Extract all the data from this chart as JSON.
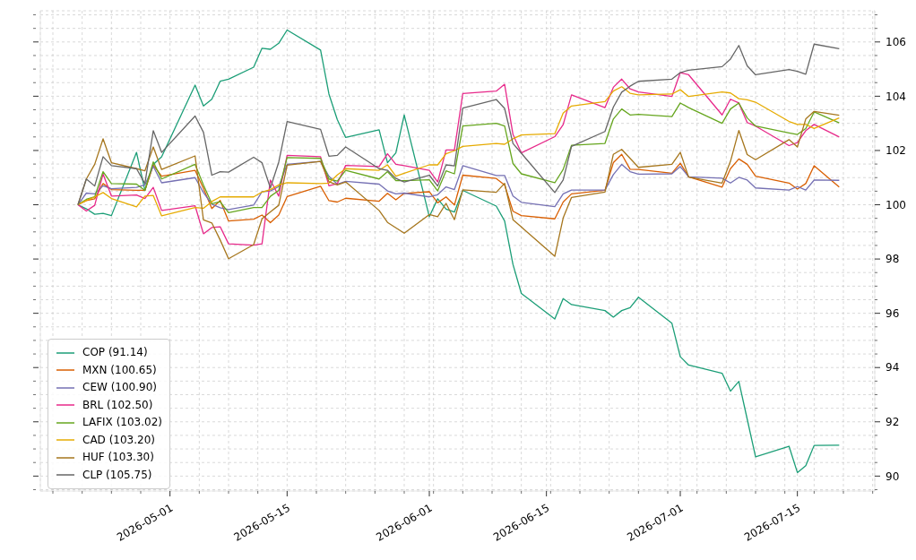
{
  "chart_data": {
    "type": "line",
    "x": [
      "2026-04-20",
      "2026-04-21",
      "2026-04-22",
      "2026-04-23",
      "2026-04-24",
      "2026-04-27",
      "2026-04-28",
      "2026-04-29",
      "2026-04-30",
      "2026-05-04",
      "2026-05-05",
      "2026-05-06",
      "2026-05-07",
      "2026-05-08",
      "2026-05-11",
      "2026-05-12",
      "2026-05-13",
      "2026-05-14",
      "2026-05-15",
      "2026-05-19",
      "2026-05-20",
      "2026-05-21",
      "2026-05-22",
      "2026-05-26",
      "2026-05-27",
      "2026-05-28",
      "2026-05-29",
      "2026-06-01",
      "2026-06-02",
      "2026-06-03",
      "2026-06-04",
      "2026-06-05",
      "2026-06-09",
      "2026-06-10",
      "2026-06-11",
      "2026-06-12",
      "2026-06-16",
      "2026-06-17",
      "2026-06-18",
      "2026-06-22",
      "2026-06-23",
      "2026-06-24",
      "2026-06-25",
      "2026-06-26",
      "2026-06-30",
      "2026-07-01",
      "2026-07-02",
      "2026-07-06",
      "2026-07-07",
      "2026-07-08",
      "2026-07-09",
      "2026-07-10",
      "2026-07-14",
      "2026-07-15",
      "2026-07-16",
      "2026-07-17",
      "2026-07-20"
    ],
    "series": [
      {
        "name": "COP (91.14)",
        "color": "#1b9e77",
        "values": [
          100,
          99.85,
          99.65,
          99.68,
          99.6,
          101.93,
          100.53,
          101.49,
          101.77,
          104.41,
          103.64,
          103.89,
          104.55,
          104.63,
          105.07,
          105.77,
          105.73,
          105.95,
          106.44,
          105.7,
          104.08,
          103.14,
          102.48,
          102.76,
          101.55,
          101.91,
          103.31,
          99.56,
          100.22,
          99.84,
          99.73,
          100.53,
          99.95,
          99.4,
          97.8,
          96.73,
          95.79,
          96.54,
          96.32,
          96.1,
          95.86,
          96.1,
          96.21,
          96.59,
          95.63,
          94.4,
          94.09,
          93.79,
          93.13,
          93.49,
          92.1,
          90.71,
          91.1,
          90.13,
          90.38,
          91.13,
          91.14
        ]
      },
      {
        "name": "MXN (100.65)",
        "color": "#d95f02",
        "values": [
          100,
          100.15,
          100.22,
          100.78,
          100.56,
          100.53,
          100.53,
          101.46,
          101.05,
          101.27,
          100.6,
          99.86,
          100.16,
          99.4,
          99.47,
          99.62,
          99.34,
          99.62,
          100.3,
          100.68,
          100.15,
          100.1,
          100.24,
          100.13,
          100.42,
          100.18,
          100.42,
          100.48,
          100.07,
          100.29,
          99.99,
          101.09,
          100.97,
          100.73,
          99.76,
          99.6,
          99.48,
          100.1,
          100.4,
          100.53,
          101.55,
          101.86,
          101.31,
          101.3,
          101.16,
          101.53,
          101.03,
          100.65,
          101.33,
          101.69,
          101.49,
          101.05,
          100.8,
          100.58,
          100.78,
          101.44,
          100.65
        ]
      },
      {
        "name": "CEW (100.90)",
        "color": "#7570b3",
        "values": [
          100,
          100.43,
          100.4,
          100.7,
          100.59,
          100.64,
          100.73,
          101.42,
          100.81,
          101.0,
          100.45,
          100.02,
          99.89,
          99.82,
          99.99,
          100.48,
          100.51,
          100.67,
          101.49,
          101.6,
          101.05,
          100.76,
          100.86,
          100.76,
          100.51,
          100.4,
          100.43,
          100.29,
          100.37,
          100.66,
          100.56,
          101.44,
          101.08,
          101.08,
          100.32,
          100.09,
          99.93,
          100.4,
          100.54,
          100.54,
          101.11,
          101.49,
          101.22,
          101.13,
          101.14,
          101.41,
          101.03,
          100.98,
          100.8,
          101.01,
          100.91,
          100.62,
          100.54,
          100.67,
          100.54,
          100.91,
          100.9
        ]
      },
      {
        "name": "BRL (102.50)",
        "color": "#e7298a",
        "values": [
          100,
          99.77,
          99.98,
          101.13,
          100.32,
          100.36,
          100.23,
          100.64,
          99.79,
          99.96,
          98.93,
          99.16,
          99.19,
          98.56,
          98.51,
          98.56,
          100.91,
          100.32,
          101.82,
          101.77,
          100.7,
          100.78,
          101.45,
          101.41,
          101.88,
          101.49,
          101.44,
          101.27,
          100.84,
          102.02,
          102.02,
          104.1,
          104.19,
          104.44,
          102.59,
          101.91,
          102.51,
          102.95,
          104.05,
          103.58,
          104.33,
          104.63,
          104.27,
          104.16,
          103.99,
          104.87,
          104.79,
          103.31,
          103.89,
          103.75,
          103.03,
          102.9,
          102.18,
          102.29,
          102.73,
          102.96,
          102.5
        ]
      },
      {
        "name": "LAFIX (103.02)",
        "color": "#66a61e",
        "values": [
          100,
          100.2,
          100.29,
          101.22,
          100.78,
          100.76,
          100.53,
          101.58,
          100.95,
          101.49,
          100.73,
          100.04,
          100.11,
          99.71,
          99.9,
          99.9,
          100.31,
          100.53,
          101.74,
          101.71,
          100.95,
          100.87,
          101.27,
          100.95,
          101.22,
          100.89,
          100.89,
          100.92,
          100.51,
          101.25,
          101.14,
          102.9,
          103.0,
          102.9,
          101.52,
          101.14,
          100.81,
          101.3,
          102.19,
          102.26,
          103.16,
          103.53,
          103.31,
          103.33,
          103.25,
          103.75,
          103.58,
          103.0,
          103.53,
          103.75,
          103.2,
          102.9,
          102.65,
          102.59,
          102.81,
          103.42,
          103.02
        ]
      },
      {
        "name": "CAD (103.20)",
        "color": "#e6ab02",
        "values": [
          100,
          100.16,
          100.29,
          100.45,
          100.23,
          99.92,
          100.32,
          100.34,
          99.59,
          99.9,
          99.87,
          100.12,
          100.29,
          100.29,
          100.29,
          100.47,
          100.56,
          100.73,
          100.81,
          100.78,
          100.8,
          101.1,
          101.33,
          101.27,
          101.47,
          101.05,
          101.16,
          101.47,
          101.47,
          101.88,
          101.99,
          102.15,
          102.26,
          102.23,
          102.43,
          102.57,
          102.62,
          103.38,
          103.64,
          103.8,
          104.19,
          104.35,
          104.11,
          104.05,
          104.08,
          104.24,
          103.99,
          104.16,
          104.12,
          103.91,
          103.87,
          103.78,
          103.07,
          102.96,
          102.96,
          102.81,
          103.2
        ]
      },
      {
        "name": "HUF (103.30)",
        "color": "#a6761d",
        "values": [
          100,
          100.95,
          101.49,
          102.43,
          101.55,
          101.33,
          101.25,
          102.13,
          101.3,
          101.8,
          99.44,
          99.33,
          98.7,
          98.01,
          98.53,
          99.48,
          99.74,
          99.98,
          101.46,
          101.6,
          100.85,
          100.73,
          100.84,
          99.79,
          99.35,
          99.15,
          98.95,
          99.64,
          99.56,
          100.05,
          99.45,
          100.55,
          100.46,
          100.79,
          99.45,
          99.18,
          98.1,
          99.51,
          100.27,
          100.47,
          101.86,
          102.04,
          101.71,
          101.38,
          101.49,
          101.93,
          101.02,
          100.8,
          101.6,
          102.74,
          101.85,
          101.66,
          102.4,
          102.13,
          103.16,
          103.44,
          103.3
        ]
      },
      {
        "name": "CLP (105.75)",
        "color": "#666666",
        "values": [
          100,
          100.95,
          100.69,
          101.77,
          101.44,
          101.33,
          100.78,
          102.73,
          101.93,
          103.27,
          102.67,
          101.09,
          101.22,
          101.2,
          101.75,
          101.55,
          100.62,
          101.57,
          103.07,
          102.78,
          101.79,
          101.82,
          102.13,
          101.33,
          101.27,
          100.97,
          100.84,
          101.09,
          100.69,
          101.47,
          101.43,
          103.56,
          103.88,
          103.55,
          102.26,
          101.9,
          100.45,
          100.91,
          102.15,
          102.7,
          103.6,
          104.15,
          104.37,
          104.55,
          104.63,
          104.87,
          104.96,
          105.09,
          105.37,
          105.87,
          105.12,
          104.79,
          104.98,
          104.92,
          104.81,
          105.92,
          105.75
        ]
      }
    ],
    "xlim": [
      "2026-04-15T12:00",
      "2026-07-24T06:00"
    ],
    "xticks": [
      {
        "value": "2026-04-17",
        "label": null
      },
      {
        "value": "2026-04-20T12:00",
        "label": null
      },
      {
        "value": "2026-04-24",
        "label": null
      },
      {
        "value": "2026-04-27T12:00",
        "label": null
      },
      "2026-05-01",
      {
        "value": "2026-05-04T12:00",
        "label": null
      },
      {
        "value": "2026-05-08",
        "label": null
      },
      {
        "value": "2026-05-11T12:00",
        "label": null
      },
      "2026-05-15",
      {
        "value": "2026-05-18T12:00",
        "label": null
      },
      {
        "value": "2026-05-22",
        "label": null
      },
      {
        "value": "2026-05-25T12:00",
        "label": null
      },
      {
        "value": "2026-05-29",
        "label": null
      },
      "2026-06-01",
      {
        "value": "2026-06-01T12:00",
        "label": null
      },
      {
        "value": "2026-06-05",
        "label": null
      },
      {
        "value": "2026-06-08T12:00",
        "label": null
      },
      {
        "value": "2026-06-12",
        "label": null
      },
      "2026-06-15",
      {
        "value": "2026-06-15T12:00",
        "label": null
      },
      {
        "value": "2026-06-19",
        "label": null
      },
      {
        "value": "2026-06-22T12:00",
        "label": null
      },
      {
        "value": "2026-06-26",
        "label": null
      },
      {
        "value": "2026-06-29T12:00",
        "label": null
      },
      "2026-07-01",
      {
        "value": "2026-07-03",
        "label": null
      },
      {
        "value": "2026-07-06T12:00",
        "label": null
      },
      {
        "value": "2026-07-10",
        "label": null
      },
      {
        "value": "2026-07-13T12:00",
        "label": null
      },
      "2026-07-15",
      {
        "value": "2026-07-17",
        "label": null
      },
      {
        "value": "2026-07-20T12:00",
        "label": null
      },
      {
        "value": "2026-07-24",
        "label": null
      }
    ],
    "ylim": [
      89.45,
      107.15
    ],
    "yticks": [
      {
        "value": 89.5,
        "label": null
      },
      90,
      {
        "value": 90.5,
        "label": null
      },
      {
        "value": 91,
        "label": null
      },
      {
        "value": 91.5,
        "label": null
      },
      92,
      {
        "value": 92.5,
        "label": null
      },
      {
        "value": 93,
        "label": null
      },
      {
        "value": 93.5,
        "label": null
      },
      94,
      {
        "value": 94.5,
        "label": null
      },
      {
        "value": 95,
        "label": null
      },
      {
        "value": 95.5,
        "label": null
      },
      96,
      {
        "value": 96.5,
        "label": null
      },
      {
        "value": 97,
        "label": null
      },
      {
        "value": 97.5,
        "label": null
      },
      98,
      {
        "value": 98.5,
        "label": null
      },
      {
        "value": 99,
        "label": null
      },
      {
        "value": 99.5,
        "label": null
      },
      100,
      {
        "value": 100.5,
        "label": null
      },
      {
        "value": 101,
        "label": null
      },
      {
        "value": 101.5,
        "label": null
      },
      102,
      {
        "value": 102.5,
        "label": null
      },
      {
        "value": 103,
        "label": null
      },
      {
        "value": 103.5,
        "label": null
      },
      104,
      {
        "value": 104.5,
        "label": null
      },
      {
        "value": 105,
        "label": null
      },
      {
        "value": 105.5,
        "label": null
      },
      106,
      {
        "value": 106.5,
        "label": null
      },
      {
        "value": 107,
        "label": null
      }
    ],
    "grid": true,
    "legend": "bottom left"
  }
}
